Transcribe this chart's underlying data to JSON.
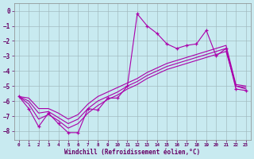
{
  "background_color": "#c8eaf0",
  "grid_color": "#b0ccd0",
  "line_color": "#aa00aa",
  "xlabel": "Windchill (Refroidissement éolien,°C)",
  "xlabel_color": "#660066",
  "tick_color": "#660066",
  "xlim": [
    -0.5,
    23.5
  ],
  "ylim": [
    -8.6,
    0.5
  ],
  "yticks": [
    0,
    -1,
    -2,
    -3,
    -4,
    -5,
    -6,
    -7,
    -8
  ],
  "xticks": [
    0,
    1,
    2,
    3,
    4,
    5,
    6,
    7,
    8,
    9,
    10,
    11,
    12,
    13,
    14,
    15,
    16,
    17,
    18,
    19,
    20,
    21,
    22,
    23
  ],
  "series1_x": [
    0,
    1,
    2,
    3,
    4,
    5,
    6,
    7,
    8,
    9,
    10,
    11,
    12,
    13,
    14,
    15,
    16,
    17,
    18,
    19,
    20,
    21,
    22,
    23
  ],
  "series1_y": [
    -5.7,
    -6.5,
    -7.7,
    -6.8,
    -7.5,
    -8.1,
    -8.1,
    -6.5,
    -6.6,
    -5.8,
    -5.8,
    -5.0,
    -0.2,
    -1.0,
    -1.5,
    -2.2,
    -2.5,
    -2.3,
    -2.2,
    -1.3,
    -3.0,
    -2.5,
    -5.2,
    -5.3
  ],
  "series2_x": [
    0,
    1,
    2,
    3,
    4,
    5,
    6,
    7,
    8,
    9,
    10,
    11,
    12,
    13,
    14,
    15,
    16,
    17,
    18,
    19,
    20,
    21,
    22,
    23
  ],
  "series2_y": [
    -5.7,
    -6.2,
    -7.2,
    -6.9,
    -7.3,
    -7.8,
    -7.5,
    -6.8,
    -6.3,
    -5.9,
    -5.6,
    -5.2,
    -4.9,
    -4.5,
    -4.2,
    -3.9,
    -3.7,
    -3.5,
    -3.3,
    -3.1,
    -2.9,
    -2.7,
    -5.0,
    -5.2
  ],
  "series3_x": [
    0,
    1,
    2,
    3,
    4,
    5,
    6,
    7,
    8,
    9,
    10,
    11,
    12,
    13,
    14,
    15,
    16,
    17,
    18,
    19,
    20,
    21,
    22,
    23
  ],
  "series3_y": [
    -5.7,
    -6.0,
    -6.8,
    -6.7,
    -7.1,
    -7.5,
    -7.2,
    -6.5,
    -6.0,
    -5.7,
    -5.4,
    -5.0,
    -4.7,
    -4.3,
    -4.0,
    -3.7,
    -3.5,
    -3.3,
    -3.1,
    -2.9,
    -2.7,
    -2.5,
    -5.0,
    -5.1
  ],
  "series4_x": [
    0,
    1,
    2,
    3,
    4,
    5,
    6,
    7,
    8,
    9,
    10,
    11,
    12,
    13,
    14,
    15,
    16,
    17,
    18,
    19,
    20,
    21,
    22,
    23
  ],
  "series4_y": [
    -5.7,
    -5.8,
    -6.5,
    -6.5,
    -6.8,
    -7.2,
    -6.9,
    -6.2,
    -5.7,
    -5.4,
    -5.1,
    -4.8,
    -4.5,
    -4.1,
    -3.8,
    -3.5,
    -3.3,
    -3.1,
    -2.9,
    -2.7,
    -2.5,
    -2.3,
    -4.9,
    -5.0
  ]
}
